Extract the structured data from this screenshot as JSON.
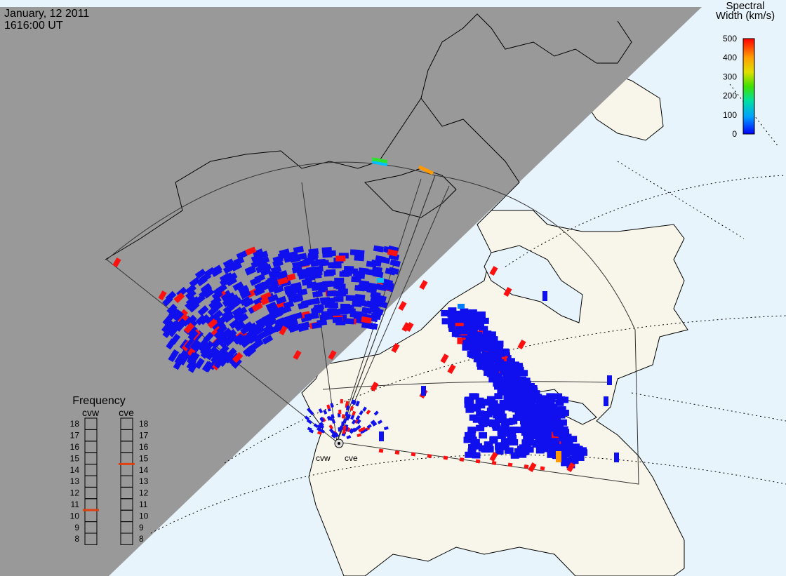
{
  "header": {
    "date": "January, 12 2011",
    "time": "1616:00 UT"
  },
  "colorbar": {
    "title_line1": "Spectral",
    "title_line2": "Width (km/s)",
    "ticks": [
      "500",
      "400",
      "300",
      "200",
      "100",
      "0"
    ],
    "range": [
      0,
      500
    ],
    "stops": [
      "#0000ff",
      "#00a0ff",
      "#00e0a0",
      "#40e000",
      "#e0e000",
      "#ffa000",
      "#ff0000"
    ]
  },
  "frequency": {
    "title": "Frequency",
    "columns": [
      {
        "label": "cvw",
        "selected": 11
      },
      {
        "label": "cve",
        "selected": 15
      }
    ],
    "levels": [
      "18",
      "17",
      "16",
      "15",
      "14",
      "13",
      "12",
      "11",
      "10",
      "9",
      "8"
    ]
  },
  "radars": [
    {
      "label": "cvw"
    },
    {
      "label": "cve"
    }
  ],
  "colors": {
    "night": "#999999",
    "ocean": "#e8f4fc",
    "land": "#f8f6ea",
    "coast": "#000000",
    "low_width": "#1010ee",
    "high_width": "#ff1010",
    "mid_width": "#ff9900",
    "frequency_marker": "#e04010"
  }
}
